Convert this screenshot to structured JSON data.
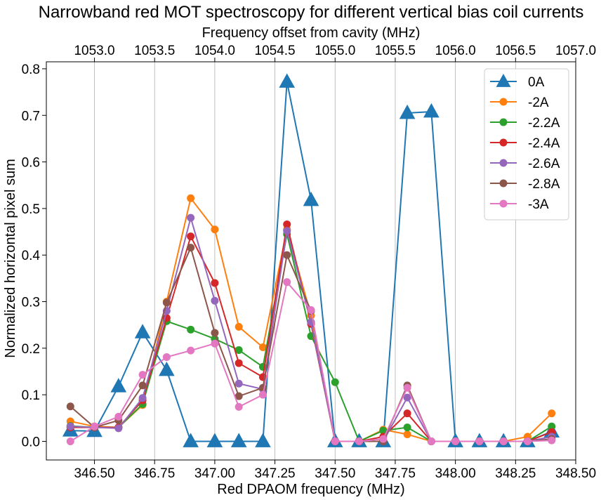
{
  "chart_data": {
    "type": "line",
    "title": "Narrowband red MOT spectroscopy for different vertical bias coil currents",
    "xlabel": "Red DPAOM frequency (MHz)",
    "ylabel": "Normalized horizontal pixel sum",
    "xlabel_top": "Frequency offset from cavity (MHz)",
    "xlim": [
      346.3,
      348.5
    ],
    "ylim": [
      -0.04,
      0.815
    ],
    "xticks": [
      "346.50",
      "346.75",
      "347.00",
      "347.25",
      "347.50",
      "347.75",
      "348.00",
      "348.25",
      "348.50"
    ],
    "xticks_values": [
      346.5,
      346.75,
      347.0,
      347.25,
      347.5,
      347.75,
      348.0,
      348.25,
      348.5
    ],
    "yticks": [
      "0.0",
      "0.1",
      "0.2",
      "0.3",
      "0.4",
      "0.5",
      "0.6",
      "0.7",
      "0.8"
    ],
    "yticks_values": [
      0.0,
      0.1,
      0.2,
      0.3,
      0.4,
      0.5,
      0.6,
      0.7,
      0.8
    ],
    "top_ticks": [
      "1053.0",
      "1053.5",
      "1054.0",
      "1054.5",
      "1055.0",
      "1055.5",
      "1056.0",
      "1056.5",
      "1057.0"
    ],
    "top_ticks_values": [
      1053.0,
      1053.5,
      1054.0,
      1054.5,
      1055.0,
      1055.5,
      1056.0,
      1056.5,
      1057.0
    ],
    "top_axis_map": {
      "bottom": [
        346.3,
        348.5
      ],
      "top": [
        1052.6,
        1057.0
      ]
    },
    "grid": "vertical",
    "legend_position": "top-right",
    "x": [
      346.4,
      346.5,
      346.6,
      346.7,
      346.8,
      346.9,
      347.0,
      347.1,
      347.2,
      347.3,
      347.4,
      347.5,
      347.6,
      347.7,
      347.8,
      347.9,
      348.0,
      348.1,
      348.2,
      348.3,
      348.4
    ],
    "series": [
      {
        "name": "0A",
        "color": "#1f77b4",
        "marker": "triangle",
        "values": [
          0.023,
          0.022,
          0.118,
          0.234,
          0.153,
          0.0,
          0.0,
          0.0,
          0.0,
          0.772,
          0.518,
          0.0,
          0.0,
          0.0,
          0.705,
          0.708,
          0.0,
          0.0,
          0.0,
          0.0,
          0.021
        ]
      },
      {
        "name": "-2A",
        "color": "#ff7f0e",
        "marker": "circle",
        "values": [
          0.043,
          0.032,
          0.03,
          0.078,
          0.3,
          0.522,
          0.455,
          0.246,
          0.202,
          0.455,
          0.27,
          0.0,
          0.0,
          0.025,
          0.015,
          0.0,
          0.0,
          0.0,
          0.0,
          0.01,
          0.06
        ]
      },
      {
        "name": "-2.2A",
        "color": "#2ca02c",
        "marker": "circle",
        "values": [
          0.033,
          0.03,
          0.03,
          0.08,
          0.258,
          0.24,
          0.22,
          0.196,
          0.16,
          0.445,
          0.226,
          0.127,
          0.0,
          0.023,
          0.03,
          0.0,
          0.0,
          0.0,
          0.0,
          0.0,
          0.032
        ]
      },
      {
        "name": "-2.4A",
        "color": "#d62728",
        "marker": "circle",
        "values": [
          0.03,
          0.03,
          0.03,
          0.088,
          0.265,
          0.44,
          0.34,
          0.168,
          0.138,
          0.466,
          0.252,
          0.0,
          0.0,
          0.01,
          0.06,
          0.0,
          0.0,
          0.0,
          0.0,
          0.0,
          0.02
        ]
      },
      {
        "name": "-2.6A",
        "color": "#9467bd",
        "marker": "circle",
        "values": [
          0.032,
          0.03,
          0.028,
          0.093,
          0.28,
          0.48,
          0.302,
          0.124,
          0.112,
          0.452,
          0.256,
          0.0,
          0.0,
          0.0,
          0.094,
          0.0,
          0.0,
          0.0,
          0.0,
          0.0,
          0.01
        ]
      },
      {
        "name": "-2.8A",
        "color": "#8c564b",
        "marker": "circle",
        "values": [
          0.075,
          0.03,
          0.045,
          0.12,
          0.298,
          0.416,
          0.233,
          0.097,
          0.115,
          0.4,
          0.28,
          0.0,
          0.0,
          0.0,
          0.12,
          0.0,
          0.0,
          0.0,
          0.0,
          0.0,
          0.005
        ]
      },
      {
        "name": "-3A",
        "color": "#e377c2",
        "marker": "circle",
        "values": [
          0.0,
          0.032,
          0.053,
          0.143,
          0.181,
          0.195,
          0.21,
          0.074,
          0.1,
          0.342,
          0.282,
          0.0,
          0.0,
          0.005,
          0.115,
          0.0,
          0.0,
          0.0,
          0.0,
          0.0,
          0.002
        ]
      }
    ]
  }
}
